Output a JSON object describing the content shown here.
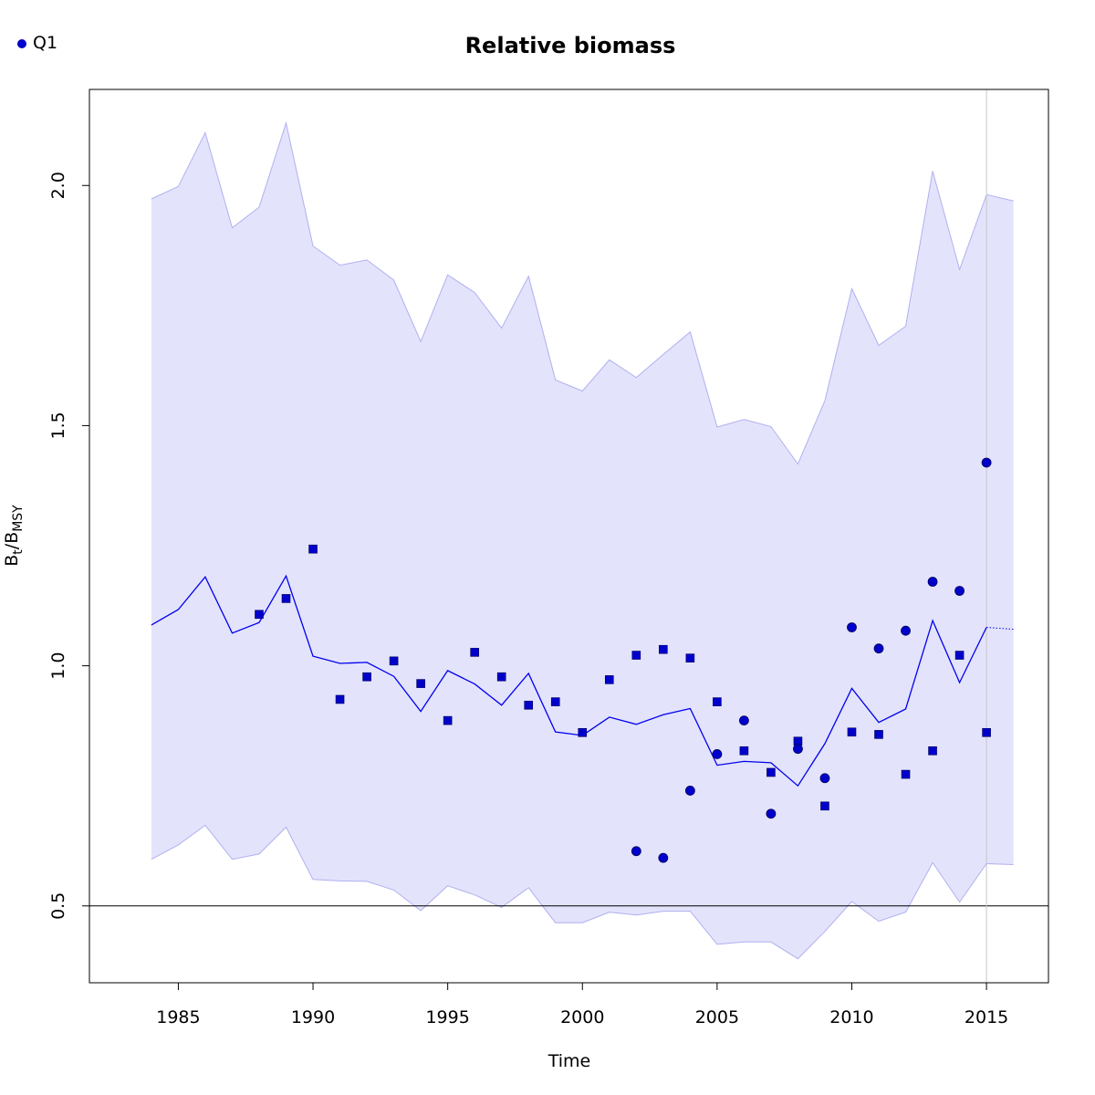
{
  "chart_data": {
    "type": "line",
    "title": "Relative biomass",
    "xlabel": "Time",
    "ylabel": {
      "main": "B",
      "sub1": "t",
      "sep": "/B",
      "sub2": "MSY"
    },
    "xlim": [
      1981.7,
      2017.3
    ],
    "ylim": [
      0.34,
      2.2
    ],
    "x_ticks": [
      1985,
      1990,
      1995,
      2000,
      2005,
      2010,
      2015
    ],
    "y_ticks": [
      0.5,
      1.0,
      1.5,
      2.0
    ],
    "y_tick_labels": [
      "0.5",
      "1.0",
      "1.5",
      "2.0"
    ],
    "reference_line_y": 0.5,
    "vertical_line_x": 2015,
    "colors": {
      "series": "#0000ee",
      "band_fill": "#e3e3fc",
      "band_edge": "#b0b0f0",
      "point_fill": "#0000cc",
      "reference_line": "#000000",
      "vertical_line": "#c8c8c8"
    },
    "legend": {
      "position": "top-left",
      "entries": [
        {
          "label": "Q1",
          "marker": "circle"
        }
      ]
    },
    "estimate": {
      "x": [
        1984,
        1985,
        1986,
        1987,
        1988,
        1989,
        1990,
        1991,
        1992,
        1993,
        1994,
        1995,
        1996,
        1997,
        1998,
        1999,
        2000,
        2001,
        2002,
        2003,
        2004,
        2005,
        2006,
        2007,
        2008,
        2009,
        2010,
        2011,
        2012,
        2013,
        2014,
        2015
      ],
      "y": [
        1.085,
        1.117,
        1.185,
        1.068,
        1.09,
        1.187,
        1.02,
        1.005,
        1.007,
        0.978,
        0.905,
        0.99,
        0.962,
        0.918,
        0.984,
        0.862,
        0.855,
        0.893,
        0.878,
        0.898,
        0.911,
        0.793,
        0.801,
        0.798,
        0.75,
        0.838,
        0.953,
        0.882,
        0.91,
        1.094,
        0.965,
        1.08
      ]
    },
    "upper_band": {
      "x": [
        1984,
        1985,
        1986,
        1987,
        1988,
        1989,
        1990,
        1991,
        1992,
        1993,
        1994,
        1995,
        1996,
        1997,
        1998,
        1999,
        2000,
        2001,
        2002,
        2003,
        2004,
        2005,
        2006,
        2007,
        2008,
        2009,
        2010,
        2011,
        2012,
        2013,
        2014,
        2015,
        2016
      ],
      "y": [
        1.972,
        1.998,
        2.11,
        1.912,
        1.955,
        2.13,
        1.874,
        1.834,
        1.845,
        1.803,
        1.675,
        1.814,
        1.777,
        1.703,
        1.811,
        1.595,
        1.572,
        1.637,
        1.6,
        1.648,
        1.695,
        1.497,
        1.513,
        1.498,
        1.42,
        1.552,
        1.785,
        1.667,
        1.707,
        2.03,
        1.825,
        1.981,
        1.968
      ]
    },
    "lower_band": {
      "x": [
        1984,
        1985,
        1986,
        1987,
        1988,
        1989,
        1990,
        1991,
        1992,
        1993,
        1994,
        1995,
        1996,
        1997,
        1998,
        1999,
        2000,
        2001,
        2002,
        2003,
        2004,
        2005,
        2006,
        2007,
        2008,
        2009,
        2010,
        2011,
        2012,
        2013,
        2014,
        2015,
        2016
      ],
      "y": [
        0.597,
        0.627,
        0.668,
        0.597,
        0.608,
        0.664,
        0.555,
        0.552,
        0.551,
        0.533,
        0.49,
        0.542,
        0.523,
        0.497,
        0.538,
        0.465,
        0.465,
        0.487,
        0.481,
        0.489,
        0.489,
        0.42,
        0.425,
        0.425,
        0.39,
        0.447,
        0.509,
        0.468,
        0.487,
        0.59,
        0.508,
        0.588,
        0.586
      ]
    },
    "projection": {
      "x": [
        2015,
        2016
      ],
      "y": [
        1.08,
        1.076
      ]
    },
    "squares": {
      "x": [
        1988,
        1989,
        1990,
        1991,
        1992,
        1993,
        1994,
        1995,
        1996,
        1997,
        1998,
        1999,
        2000,
        2001,
        2002,
        2003,
        2004,
        2005,
        2006,
        2007,
        2008,
        2009,
        2010,
        2011,
        2012,
        2013,
        2014,
        2015
      ],
      "y": [
        1.107,
        1.14,
        1.243,
        0.93,
        0.977,
        1.01,
        0.963,
        0.886,
        1.028,
        0.977,
        0.918,
        0.925,
        0.861,
        0.971,
        1.022,
        1.034,
        1.016,
        0.925,
        0.823,
        0.778,
        0.843,
        0.708,
        0.862,
        0.857,
        0.774,
        0.823,
        1.022,
        0.861
      ]
    },
    "circles": {
      "x": [
        2002,
        2003,
        2004,
        2005,
        2006,
        2007,
        2008,
        2009,
        2010,
        2011,
        2012,
        2013,
        2014,
        2015
      ],
      "y": [
        0.614,
        0.6,
        0.74,
        0.816,
        0.886,
        0.692,
        0.827,
        0.766,
        1.08,
        1.036,
        1.073,
        1.175,
        1.156,
        1.423
      ]
    }
  }
}
